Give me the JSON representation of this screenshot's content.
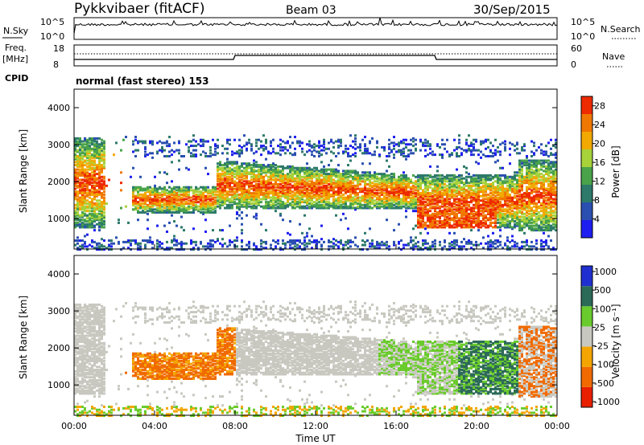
{
  "header": {
    "radar": "Pykkvibaer (fitACF)",
    "beam": "Beam 03",
    "date": "30/Sep/2015"
  },
  "noise_panel": {
    "left_label": "N.Sky",
    "left_ticks": [
      "10^5",
      "10^0"
    ],
    "right_label": "N.Search",
    "right_ticks": [
      "10^5",
      "10^0"
    ]
  },
  "freq_panel": {
    "left_label_1": "Freq.",
    "left_label_2": "[MHz]",
    "left_ticks": [
      "18",
      "8"
    ],
    "right_label": "Nave",
    "right_ticks": [
      "60",
      "0"
    ],
    "cpid_label": "CPID",
    "cpid_value": "normal (fast stereo) 153"
  },
  "chart_data": [
    {
      "type": "heatmap",
      "title": "",
      "ylabel": "Slant Range [km]",
      "ylim": [
        180,
        4500
      ],
      "yticks": [
        "1000",
        "2000",
        "3000",
        "4000"
      ],
      "xlim": [
        "00:00",
        "24:00"
      ],
      "colorbar_label": "Power [dB]",
      "colorbar_ticks": [
        "4",
        "8",
        "12",
        "16",
        "20",
        "24",
        "28"
      ],
      "colorbar_range": [
        0,
        30
      ],
      "colors": [
        "#1e1ef0",
        "#2a4fb0",
        "#2d7a6a",
        "#4aa34a",
        "#a7d23a",
        "#f2a900",
        "#f07800",
        "#ee2a00"
      ]
    },
    {
      "type": "heatmap",
      "title": "",
      "ylabel": "Slant Range [km]",
      "ylim": [
        180,
        4500
      ],
      "yticks": [
        "1000",
        "2000",
        "3000",
        "4000"
      ],
      "xlim": [
        "00:00",
        "24:00"
      ],
      "xlabel": "Time UT",
      "xticks": [
        "00:00",
        "04:00",
        "08:00",
        "12:00",
        "16:00",
        "20:00",
        "00:00"
      ],
      "colorbar_label": "Velocity [m s⁻¹]",
      "colorbar_ticks": [
        "1000",
        "500",
        "100",
        "25",
        "-25",
        "-100",
        "-500",
        "-1000"
      ],
      "colors": [
        "#2030d0",
        "#2c6a58",
        "#6acb2c",
        "#c8c8c0",
        "#f4a500",
        "#f06a00",
        "#e82000"
      ]
    }
  ]
}
